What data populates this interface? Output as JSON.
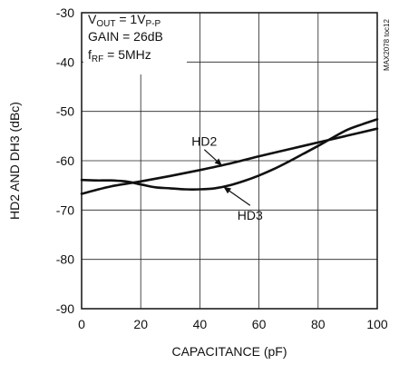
{
  "chart_data": {
    "type": "line",
    "xlabel": "CAPACITANCE (pF)",
    "ylabel": "HD2 AND DH3 (dBc)",
    "xlim": [
      0,
      100
    ],
    "ylim": [
      -90,
      -30
    ],
    "x_ticks": [
      "0",
      "20",
      "40",
      "60",
      "80",
      "100"
    ],
    "y_ticks": [
      "-30",
      "-40",
      "-50",
      "-60",
      "-70",
      "-80",
      "-90"
    ],
    "grid": true,
    "conditions": {
      "vout_prefix": "V",
      "vout_sub": "OUT",
      "vout_eq": " = 1V",
      "vout_sub2": "P-P",
      "gain": "GAIN = 26dB",
      "frf_prefix": "f",
      "frf_sub": "RF",
      "frf_eq": " = 5MHz"
    },
    "code_label": "MAX2078 toc12",
    "series": [
      {
        "name": "HD2",
        "x": [
          0,
          10,
          20,
          30,
          40,
          50,
          60,
          70,
          80,
          90,
          100
        ],
        "y": [
          -66.7,
          -65.2,
          -64.2,
          -63.1,
          -61.9,
          -60.6,
          -59.1,
          -57.7,
          -56.3,
          -54.9,
          -53.5
        ]
      },
      {
        "name": "HD3",
        "x": [
          0,
          5,
          10,
          15,
          20,
          25,
          30,
          35,
          40,
          45,
          50,
          55,
          60,
          65,
          70,
          75,
          80,
          85,
          90,
          95,
          100
        ],
        "y": [
          -63.9,
          -64.0,
          -64.0,
          -64.2,
          -64.8,
          -65.4,
          -65.6,
          -65.8,
          -65.8,
          -65.6,
          -65.0,
          -64.1,
          -63.0,
          -61.7,
          -60.2,
          -58.6,
          -57.0,
          -55.3,
          -53.7,
          -52.6,
          -51.6
        ]
      }
    ],
    "annotations": [
      {
        "label": "HD2",
        "x": 41.5,
        "y": -57.0,
        "target_x": 47.5,
        "target_y": -61.0
      },
      {
        "label": "HD3",
        "x": 57.0,
        "y": -72.0,
        "target_x": 48.0,
        "target_y": -65.3
      }
    ]
  }
}
